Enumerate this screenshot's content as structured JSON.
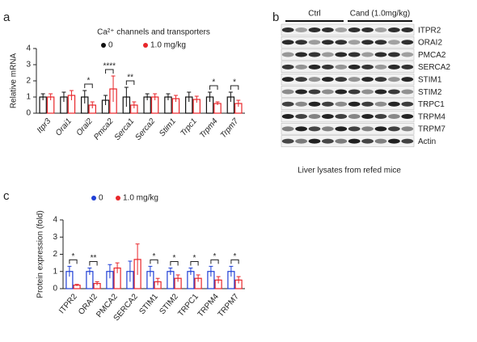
{
  "chart_data": [
    {
      "type": "bar",
      "panel": "a",
      "title": "Ca²⁺ channels and transporters",
      "y_label": "Relative mRNA",
      "categories": [
        "Itpr3",
        "Orai1",
        "Orai2",
        "Pmca2",
        "Serca1",
        "Serca2",
        "Stim1",
        "Trpc1",
        "Trpm4",
        "Trpm7"
      ],
      "series": [
        {
          "name": "0",
          "color": "#111111",
          "values": [
            1.0,
            1.0,
            1.0,
            0.8,
            1.0,
            1.0,
            1.0,
            1.0,
            1.0,
            1.0
          ],
          "errors": [
            0.2,
            0.3,
            0.4,
            0.3,
            0.6,
            0.2,
            0.2,
            0.3,
            0.3,
            0.3
          ]
        },
        {
          "name": "1.0 mg/kg",
          "color": "#e8262a",
          "values": [
            1.0,
            1.1,
            0.5,
            1.5,
            0.5,
            1.0,
            0.9,
            0.85,
            0.6,
            0.6
          ],
          "errors": [
            0.2,
            0.3,
            0.2,
            0.8,
            0.2,
            0.2,
            0.2,
            0.2,
            0.1,
            0.2
          ]
        }
      ],
      "significance": [
        null,
        null,
        "*",
        "****",
        "**",
        null,
        null,
        null,
        "*",
        "*"
      ],
      "ylim": [
        0,
        4
      ],
      "yticks": [
        0,
        1,
        2,
        3,
        4
      ]
    },
    {
      "type": "bar",
      "panel": "c",
      "y_label": "Protein expression (fold)",
      "categories": [
        "ITPR2",
        "ORAI2",
        "PMCA2",
        "SERCA2",
        "STIM1",
        "STIM2",
        "TRPC1",
        "TRPM4",
        "TRPM7"
      ],
      "series": [
        {
          "name": "0",
          "color": "#1f3fd6",
          "values": [
            1.0,
            1.0,
            1.0,
            1.0,
            1.0,
            1.0,
            1.0,
            1.0,
            1.0
          ],
          "errors": [
            0.3,
            0.2,
            0.4,
            0.6,
            0.3,
            0.2,
            0.2,
            0.3,
            0.3
          ]
        },
        {
          "name": "1.0 mg/kg",
          "color": "#e8262a",
          "values": [
            0.2,
            0.3,
            1.2,
            1.7,
            0.4,
            0.6,
            0.6,
            0.5,
            0.5
          ],
          "errors": [
            0.05,
            0.1,
            0.3,
            0.9,
            0.2,
            0.2,
            0.2,
            0.2,
            0.2
          ]
        }
      ],
      "significance": [
        "*",
        "**",
        null,
        null,
        "*",
        "*",
        "*",
        "*",
        "*"
      ],
      "ylim": [
        0,
        4
      ],
      "yticks": [
        0,
        1,
        2,
        3,
        4
      ]
    }
  ],
  "blot": {
    "panel": "b",
    "groups": [
      "Ctrl",
      "Cand (1.0mg/kg)"
    ],
    "proteins": [
      "ITPR2",
      "ORAI2",
      "PMCA2",
      "SERCA2",
      "STIM1",
      "STIM2",
      "TRPC1",
      "TRPM4",
      "TRPM7",
      "Actin"
    ],
    "caption": "Liver lysates from refed mice"
  }
}
